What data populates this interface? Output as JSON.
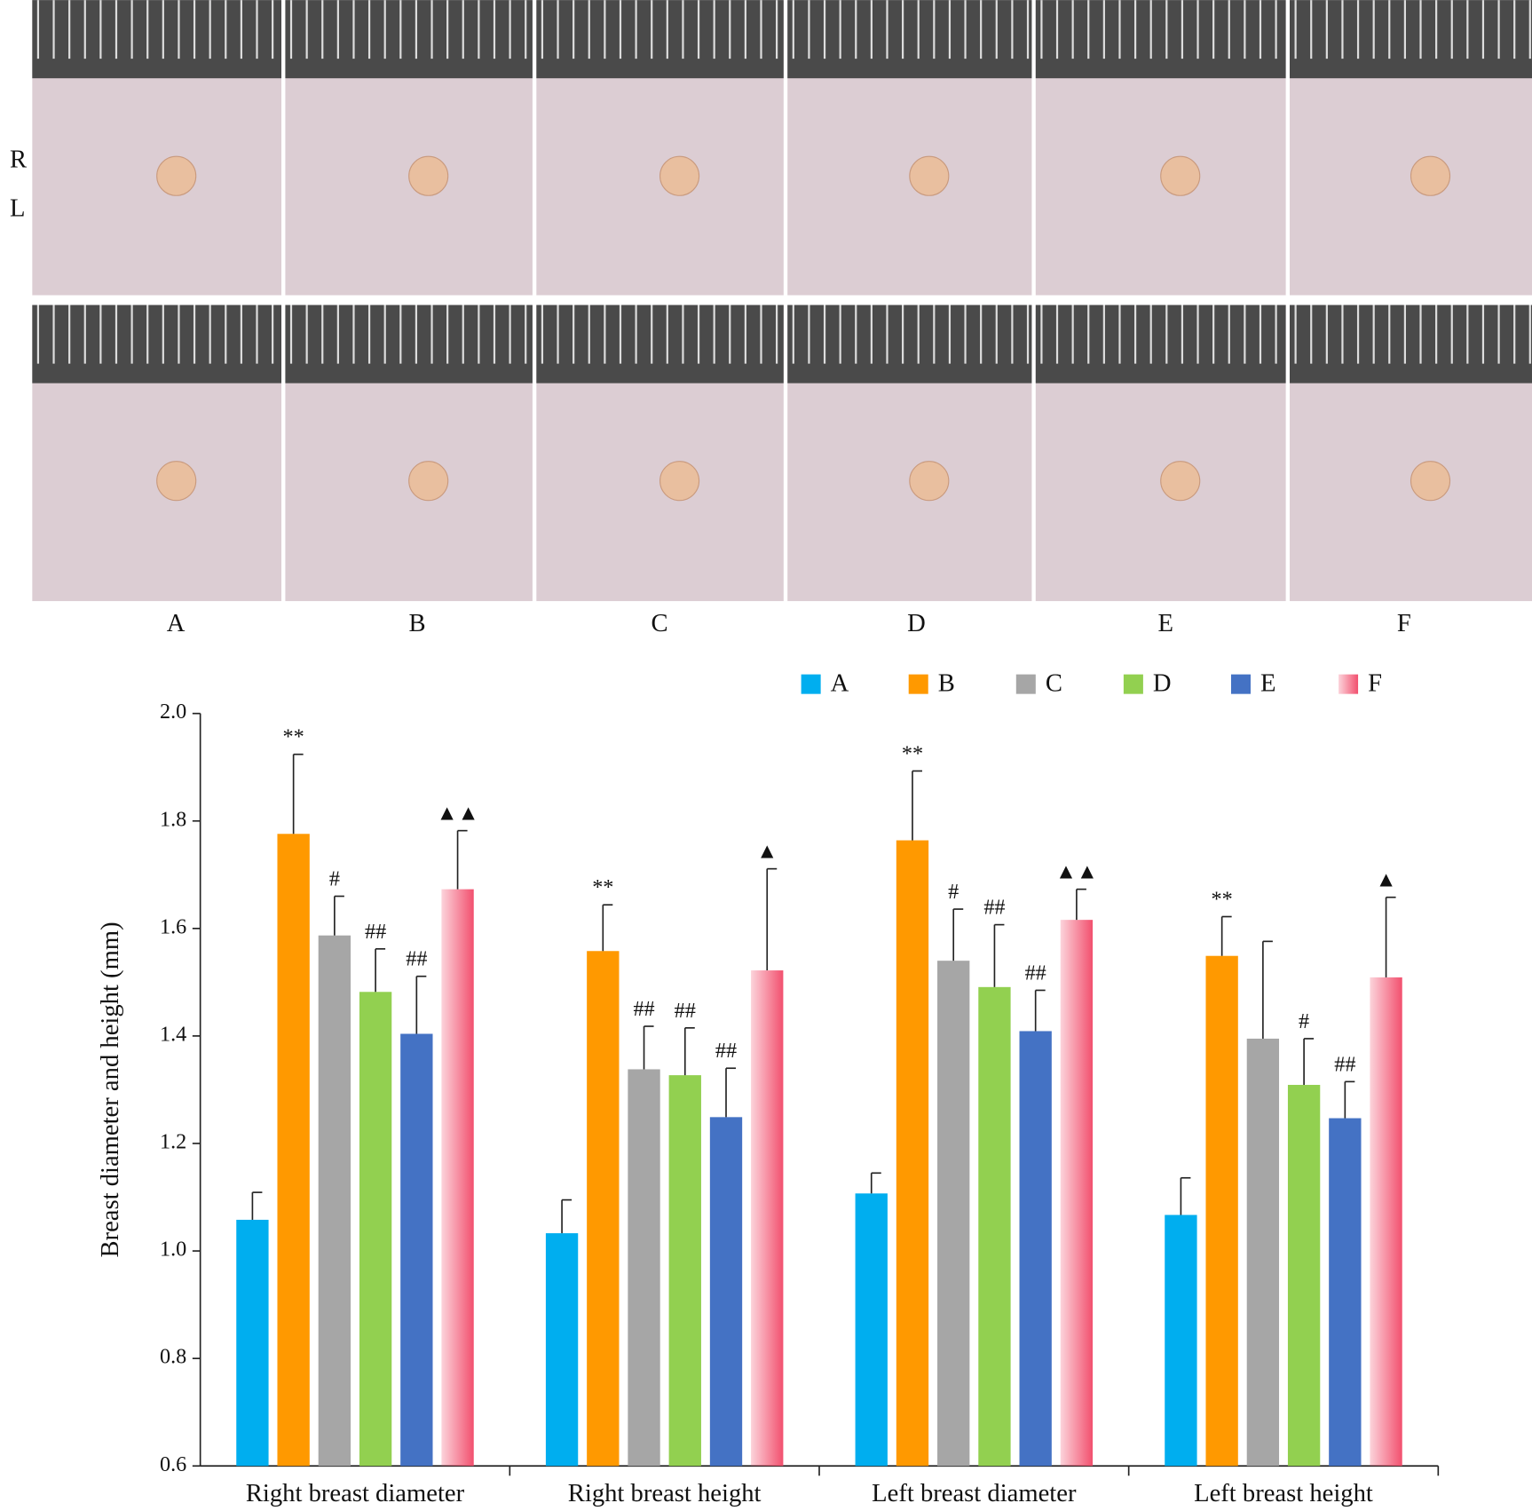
{
  "photo_panel": {
    "row_labels": [
      "R",
      "L"
    ],
    "column_labels": [
      "A",
      "B",
      "C",
      "D",
      "E",
      "F"
    ]
  },
  "chart_data": {
    "type": "bar",
    "y_label": "Breast diameter and height (mm)",
    "categories": [
      "Right breast diameter",
      "Right breast height",
      "Left breast diameter",
      "Left breast height"
    ],
    "ylim": [
      0.6,
      2.0
    ],
    "yticks": [
      0.6,
      0.8,
      {
        "value": 1.0,
        "label": "1.0"
      },
      1.2,
      1.4,
      1.6,
      1.8,
      {
        "value": 2.0,
        "label": "2.0"
      }
    ],
    "legend": "top-right",
    "series": [
      {
        "name": "A",
        "color": "#00aeef",
        "values": [
          1.058,
          1.033,
          1.107,
          1.067
        ],
        "errors": [
          0.051,
          0.062,
          0.038,
          0.069
        ],
        "annotations": [
          null,
          null,
          null,
          null
        ]
      },
      {
        "name": "B",
        "color": "#ff9900",
        "values": [
          1.776,
          1.558,
          1.764,
          1.549
        ],
        "errors": [
          0.148,
          0.086,
          0.129,
          0.073
        ],
        "annotations": [
          "**",
          "**",
          "**",
          "**"
        ]
      },
      {
        "name": "C",
        "color": "#a6a6a6",
        "values": [
          1.587,
          1.338,
          1.54,
          1.395
        ],
        "errors": [
          0.073,
          0.08,
          0.096,
          0.181
        ],
        "annotations": [
          "#",
          "##",
          "#",
          null
        ]
      },
      {
        "name": "D",
        "color": "#92d050",
        "values": [
          1.482,
          1.327,
          1.491,
          1.309
        ],
        "errors": [
          0.08,
          0.088,
          0.116,
          0.086
        ],
        "annotations": [
          "##",
          "##",
          "##",
          "#"
        ]
      },
      {
        "name": "E",
        "color": "#4472c4",
        "values": [
          1.404,
          1.249,
          1.409,
          1.247
        ],
        "errors": [
          0.107,
          0.091,
          0.076,
          0.068
        ],
        "annotations": [
          "##",
          "##",
          "##",
          "##"
        ]
      },
      {
        "name": "F",
        "color": "#f2506e",
        "gradient": true,
        "values": [
          1.673,
          1.522,
          1.616,
          1.509
        ],
        "errors": [
          0.109,
          0.189,
          0.057,
          0.149
        ],
        "annotations": [
          "▲▲",
          "▲",
          "▲▲",
          "▲"
        ]
      }
    ]
  }
}
